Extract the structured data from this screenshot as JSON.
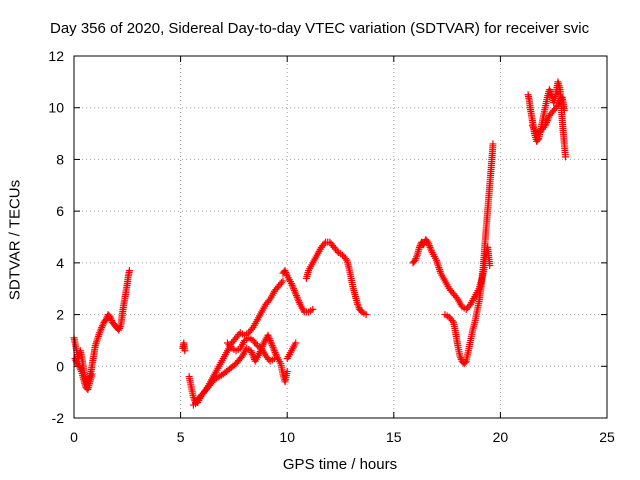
{
  "chart_data": {
    "type": "scatter",
    "title": "Day 356 of 2020, Sidereal Day-to-day VTEC variation (SDTVAR) for receiver svic",
    "xlabel": "GPS time / hours",
    "ylabel": "SDTVAR / TECUs",
    "xlim": [
      0,
      25
    ],
    "ylim": [
      -2,
      12
    ],
    "xticks": [
      "0",
      "5",
      "10",
      "15",
      "20",
      "25"
    ],
    "yticks": [
      "-2",
      "0",
      "2",
      "4",
      "6",
      "8",
      "10",
      "12"
    ],
    "grid": true,
    "marker": "+",
    "color": "#ff0000",
    "series": [
      {
        "segments": [
          [
            [
              0.0,
              1.1
            ],
            [
              0.1,
              0.7
            ],
            [
              0.2,
              0.3
            ],
            [
              0.3,
              0.6
            ],
            [
              0.4,
              0.2
            ],
            [
              0.5,
              -0.4
            ],
            [
              0.6,
              -0.7
            ],
            [
              0.7,
              -0.5
            ],
            [
              0.8,
              -0.2
            ],
            [
              0.9,
              0.3
            ],
            [
              1.0,
              0.8
            ],
            [
              1.2,
              1.3
            ],
            [
              1.4,
              1.7
            ],
            [
              1.5,
              1.8
            ],
            [
              1.6,
              2.0
            ],
            [
              1.7,
              1.9
            ],
            [
              1.8,
              1.7
            ],
            [
              1.9,
              1.6
            ],
            [
              2.0,
              1.5
            ],
            [
              2.1,
              1.4
            ],
            [
              2.2,
              1.6
            ],
            [
              2.3,
              2.2
            ],
            [
              2.4,
              2.7
            ],
            [
              2.5,
              3.2
            ],
            [
              2.55,
              3.5
            ],
            [
              2.6,
              3.7
            ]
          ],
          [
            [
              0.05,
              0.3
            ],
            [
              0.15,
              0.1
            ],
            [
              0.25,
              0.0
            ],
            [
              0.35,
              -0.2
            ],
            [
              0.45,
              -0.5
            ],
            [
              0.55,
              -0.8
            ],
            [
              0.65,
              -0.9
            ],
            [
              0.75,
              -0.6
            ],
            [
              0.85,
              -0.3
            ]
          ],
          [
            [
              5.1,
              0.7
            ],
            [
              5.15,
              0.9
            ],
            [
              5.2,
              0.6
            ]
          ],
          [
            [
              5.4,
              -0.4
            ],
            [
              5.5,
              -0.8
            ],
            [
              5.6,
              -1.2
            ],
            [
              5.7,
              -1.4
            ],
            [
              5.8,
              -1.3
            ],
            [
              5.9,
              -1.2
            ],
            [
              6.0,
              -1.1
            ],
            [
              6.2,
              -0.9
            ],
            [
              6.4,
              -0.6
            ],
            [
              6.6,
              -0.3
            ],
            [
              6.8,
              0.0
            ],
            [
              7.0,
              0.3
            ],
            [
              7.2,
              0.6
            ],
            [
              7.4,
              0.9
            ],
            [
              7.6,
              1.1
            ],
            [
              7.8,
              1.3
            ],
            [
              8.0,
              1.2
            ],
            [
              8.2,
              1.3
            ],
            [
              8.4,
              1.5
            ],
            [
              8.6,
              1.8
            ],
            [
              8.8,
              2.1
            ],
            [
              9.0,
              2.4
            ],
            [
              9.2,
              2.6
            ],
            [
              9.4,
              2.9
            ],
            [
              9.6,
              3.1
            ],
            [
              9.8,
              3.3
            ]
          ],
          [
            [
              5.6,
              -1.5
            ],
            [
              5.8,
              -1.4
            ],
            [
              6.0,
              -1.1
            ],
            [
              6.3,
              -0.8
            ],
            [
              6.6,
              -0.5
            ],
            [
              7.0,
              -0.3
            ],
            [
              7.3,
              -0.1
            ],
            [
              7.6,
              0.1
            ],
            [
              7.9,
              0.4
            ],
            [
              8.1,
              0.7
            ],
            [
              8.3,
              0.6
            ],
            [
              8.5,
              0.2
            ],
            [
              8.7,
              0.5
            ],
            [
              8.9,
              0.9
            ],
            [
              9.1,
              1.2
            ],
            [
              9.3,
              0.8
            ],
            [
              9.5,
              0.4
            ],
            [
              9.7,
              0.1
            ],
            [
              9.8,
              -0.3
            ],
            [
              9.9,
              -0.6
            ],
            [
              10.0,
              -0.2
            ]
          ],
          [
            [
              7.2,
              0.9
            ],
            [
              7.4,
              0.7
            ],
            [
              7.6,
              0.6
            ],
            [
              7.8,
              0.7
            ],
            [
              8.0,
              1.0
            ],
            [
              8.2,
              1.1
            ],
            [
              8.4,
              1.0
            ],
            [
              8.6,
              0.8
            ],
            [
              8.8,
              0.7
            ],
            [
              9.0,
              0.4
            ],
            [
              9.2,
              0.2
            ],
            [
              9.4,
              0.3
            ]
          ],
          [
            [
              10.0,
              0.3
            ],
            [
              10.2,
              0.6
            ],
            [
              10.4,
              0.9
            ]
          ],
          [
            [
              9.8,
              3.6
            ],
            [
              9.9,
              3.7
            ],
            [
              10.0,
              3.5
            ],
            [
              10.2,
              3.2
            ],
            [
              10.4,
              2.8
            ],
            [
              10.6,
              2.4
            ],
            [
              10.8,
              2.1
            ],
            [
              11.0,
              2.1
            ],
            [
              11.2,
              2.2
            ]
          ],
          [
            [
              10.9,
              3.4
            ],
            [
              11.0,
              3.7
            ],
            [
              11.2,
              4.0
            ],
            [
              11.4,
              4.3
            ],
            [
              11.6,
              4.6
            ],
            [
              11.8,
              4.8
            ],
            [
              12.0,
              4.8
            ],
            [
              12.2,
              4.6
            ],
            [
              12.4,
              4.4
            ],
            [
              12.6,
              4.3
            ],
            [
              12.8,
              4.1
            ],
            [
              12.9,
              3.8
            ],
            [
              13.0,
              3.4
            ],
            [
              13.1,
              3.0
            ],
            [
              13.2,
              2.7
            ],
            [
              13.3,
              2.4
            ],
            [
              13.4,
              2.2
            ],
            [
              13.5,
              2.1
            ],
            [
              13.7,
              2.0
            ]
          ],
          [
            [
              15.9,
              4.0
            ],
            [
              16.0,
              4.1
            ],
            [
              16.1,
              4.3
            ],
            [
              16.2,
              4.6
            ],
            [
              16.3,
              4.8
            ],
            [
              16.4,
              4.7
            ],
            [
              16.5,
              4.9
            ],
            [
              16.6,
              4.8
            ],
            [
              16.7,
              4.6
            ],
            [
              16.8,
              4.4
            ],
            [
              17.0,
              4.1
            ],
            [
              17.2,
              3.6
            ],
            [
              17.4,
              3.3
            ],
            [
              17.6,
              3.0
            ],
            [
              17.8,
              2.8
            ],
            [
              18.0,
              2.6
            ],
            [
              18.2,
              2.3
            ],
            [
              18.4,
              2.2
            ],
            [
              18.6,
              2.4
            ],
            [
              18.8,
              2.7
            ],
            [
              19.0,
              3.0
            ],
            [
              19.2,
              3.6
            ],
            [
              19.3,
              4.2
            ],
            [
              19.4,
              4.6
            ],
            [
              19.5,
              3.9
            ]
          ],
          [
            [
              17.4,
              2.0
            ],
            [
              17.6,
              1.9
            ],
            [
              17.8,
              1.7
            ],
            [
              17.9,
              1.3
            ],
            [
              18.0,
              0.8
            ],
            [
              18.1,
              0.4
            ],
            [
              18.2,
              0.2
            ],
            [
              18.3,
              0.1
            ],
            [
              18.4,
              0.2
            ],
            [
              18.5,
              0.6
            ],
            [
              18.6,
              1.0
            ],
            [
              18.7,
              1.4
            ],
            [
              18.8,
              1.7
            ],
            [
              18.9,
              2.1
            ],
            [
              19.0,
              2.5
            ],
            [
              19.1,
              3.1
            ],
            [
              19.2,
              3.9
            ],
            [
              19.3,
              5.0
            ],
            [
              19.4,
              6.0
            ],
            [
              19.5,
              7.0
            ],
            [
              19.6,
              8.0
            ],
            [
              19.65,
              8.6
            ]
          ],
          [
            [
              21.3,
              10.5
            ],
            [
              21.35,
              10.3
            ],
            [
              21.4,
              10.0
            ],
            [
              21.5,
              9.5
            ],
            [
              21.6,
              9.0
            ],
            [
              21.7,
              8.7
            ],
            [
              21.8,
              8.8
            ],
            [
              21.9,
              9.2
            ],
            [
              22.0,
              9.6
            ],
            [
              22.1,
              10.0
            ],
            [
              22.2,
              10.4
            ],
            [
              22.3,
              10.7
            ],
            [
              22.4,
              10.5
            ],
            [
              22.5,
              10.2
            ],
            [
              22.6,
              10.5
            ],
            [
              22.7,
              11.0
            ],
            [
              22.8,
              10.7
            ],
            [
              22.85,
              10.2
            ],
            [
              22.9,
              9.5
            ],
            [
              23.0,
              8.6
            ],
            [
              23.05,
              8.1
            ]
          ],
          [
            [
              21.5,
              9.3
            ],
            [
              21.7,
              9.0
            ],
            [
              21.9,
              9.1
            ],
            [
              22.1,
              9.3
            ],
            [
              22.3,
              9.7
            ],
            [
              22.5,
              9.9
            ],
            [
              22.7,
              10.1
            ],
            [
              22.9,
              10.4
            ],
            [
              23.0,
              9.9
            ]
          ]
        ]
      }
    ]
  }
}
